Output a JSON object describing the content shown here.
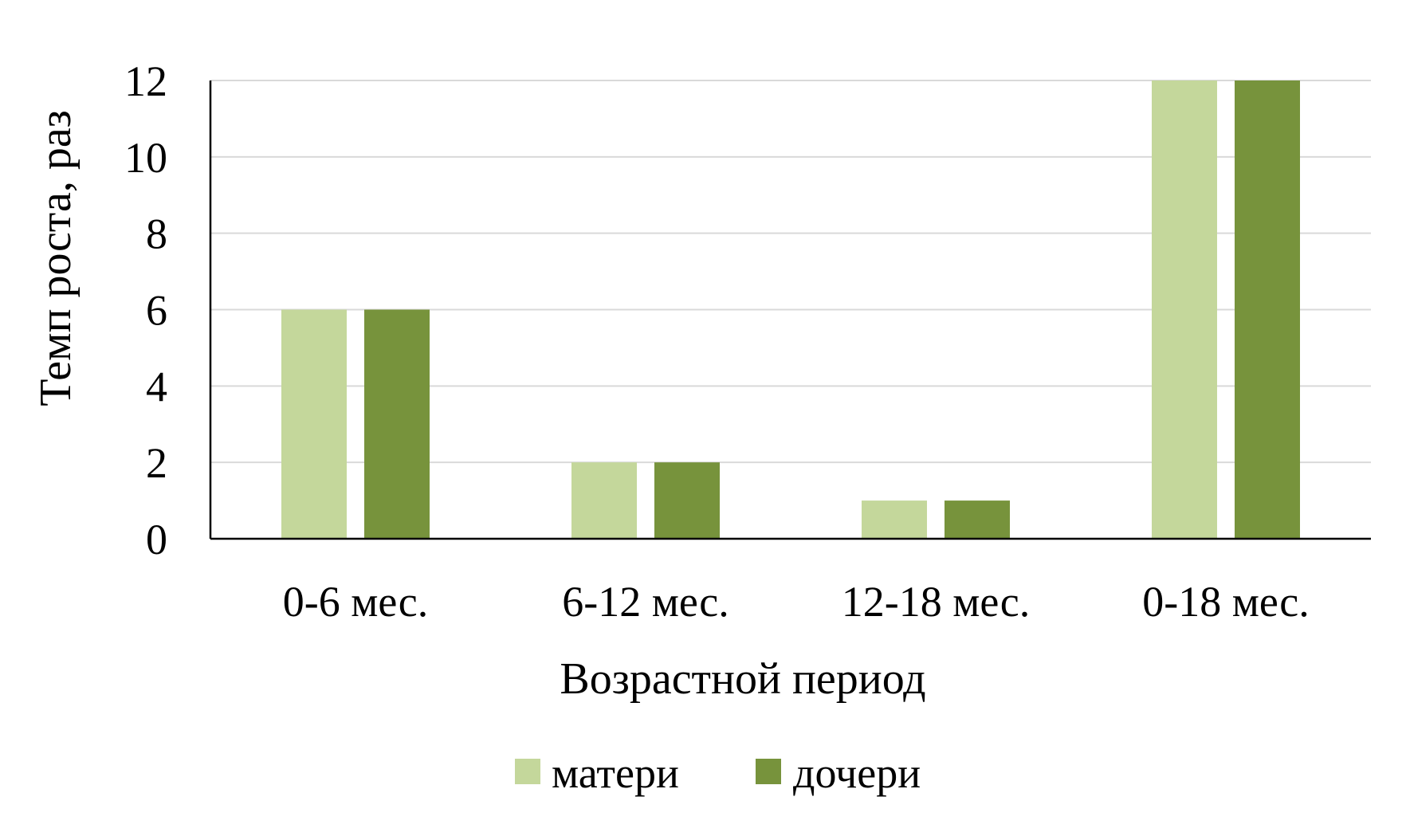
{
  "chart_data": {
    "type": "bar",
    "title": "",
    "xlabel": "Возрастной период",
    "ylabel": "Темп роста, раз",
    "categories": [
      "0-6 мес.",
      "6-12 мес.",
      "12-18 мес.",
      "0-18 мес."
    ],
    "series": [
      {
        "name": "матери",
        "values": [
          6,
          2,
          1,
          12
        ],
        "color": "#c4d79b"
      },
      {
        "name": "дочери",
        "values": [
          6,
          2,
          1,
          12
        ],
        "color": "#77933c"
      }
    ],
    "ylim": [
      0,
      12
    ],
    "yticks": [
      "0",
      "2",
      "4",
      "6",
      "8",
      "10",
      "12"
    ],
    "grid": true,
    "legend_position": "bottom"
  }
}
